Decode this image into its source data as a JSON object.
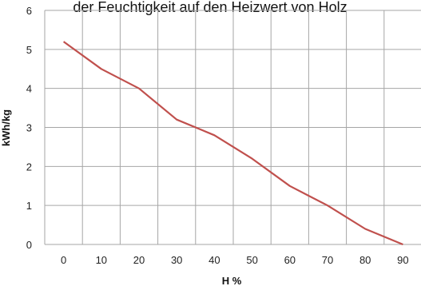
{
  "chart_data": {
    "type": "line",
    "title": "der Feuchtigkeit auf den Heizwert von Holz",
    "xlabel": "H %",
    "ylabel": "kWh/kg",
    "x": [
      0,
      10,
      20,
      30,
      40,
      50,
      60,
      70,
      80,
      90
    ],
    "xticks": [
      "0",
      "10",
      "20",
      "30",
      "40",
      "50",
      "60",
      "70",
      "80",
      "90"
    ],
    "yticks": [
      "0",
      "1",
      "2",
      "3",
      "4",
      "5",
      "6"
    ],
    "ylim": [
      0,
      6
    ],
    "series": [
      {
        "values": [
          5.2,
          4.5,
          4.0,
          3.2,
          2.8,
          2.2,
          1.5,
          1.0,
          0.4,
          0.0
        ],
        "color": "#c0504d"
      }
    ],
    "grid": true,
    "gridColor": "#a6a6a6"
  }
}
